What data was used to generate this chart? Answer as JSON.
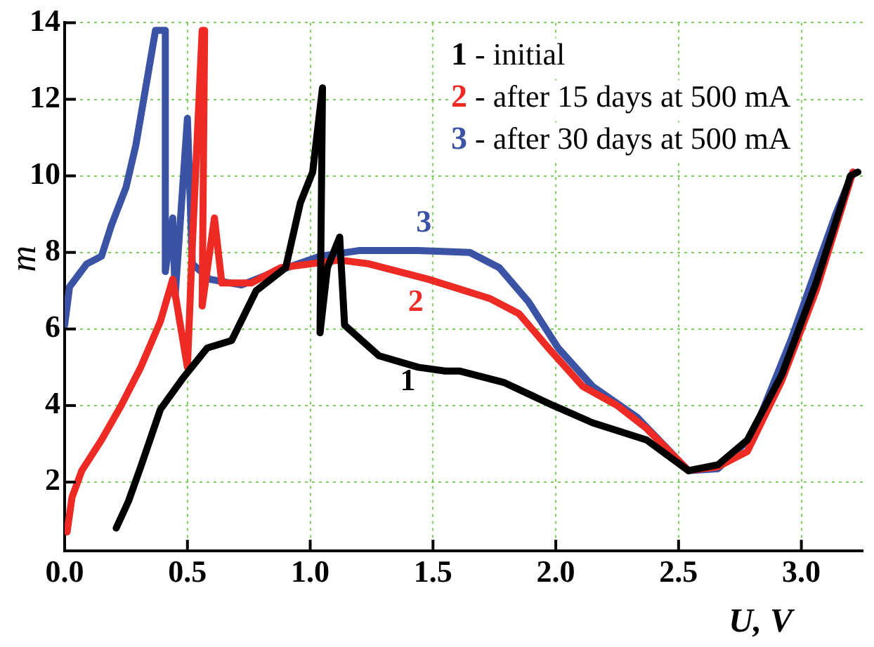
{
  "chart_data": {
    "type": "line",
    "xlabel": "U, V",
    "ylabel": "m",
    "xlim": [
      0,
      3.25
    ],
    "ylim": [
      0.2,
      14
    ],
    "xticks": [
      {
        "value": 0,
        "label": "0.0"
      },
      {
        "value": 0.5,
        "label": "0.5"
      },
      {
        "value": 1,
        "label": "1.0"
      },
      {
        "value": 1.5,
        "label": "1.5"
      },
      {
        "value": 2,
        "label": "2.0"
      },
      {
        "value": 2.5,
        "label": "2.5"
      },
      {
        "value": 3,
        "label": "3.0"
      }
    ],
    "yticks": [
      2,
      4,
      6,
      8,
      10,
      12,
      14
    ],
    "grid": true,
    "legend": "top right",
    "marker": "none",
    "line_style": "solid",
    "series": [
      {
        "name": "1 - initial",
        "color": "#000000",
        "x": [
          0.21,
          0.26,
          0.31,
          0.39,
          0.48,
          0.58,
          0.68,
          0.78,
          0.9,
          0.96,
          1.01,
          1.05,
          1.04,
          1.07,
          1.12,
          1.14,
          1.28,
          1.44,
          1.55,
          1.61,
          1.79,
          1.99,
          2.15,
          2.37,
          2.54,
          2.66,
          2.78,
          2.92,
          3.06,
          3.2,
          3.23
        ],
        "values": [
          0.8,
          1.5,
          2.4,
          3.9,
          4.7,
          5.5,
          5.7,
          7.0,
          7.6,
          9.3,
          10.1,
          12.3,
          5.9,
          7.6,
          8.4,
          6.1,
          5.3,
          5.0,
          4.9,
          4.9,
          4.6,
          4.0,
          3.55,
          3.1,
          2.3,
          2.45,
          3.1,
          4.8,
          7.2,
          10.0,
          10.1
        ]
      },
      {
        "name": "2 - after 15 days at 500 mA",
        "color": "#ee2a24",
        "x": [
          0.01,
          0.03,
          0.07,
          0.15,
          0.23,
          0.31,
          0.39,
          0.44,
          0.5,
          0.52,
          0.56,
          0.57,
          0.56,
          0.61,
          0.64,
          0.76,
          0.88,
          1.12,
          1.24,
          1.48,
          1.73,
          1.85,
          1.97,
          2.11,
          2.25,
          2.37,
          2.54,
          2.66,
          2.78,
          2.92,
          3.06,
          3.21
        ],
        "values": [
          0.7,
          1.6,
          2.3,
          3.1,
          4.0,
          5.0,
          6.2,
          7.3,
          5.0,
          8.2,
          13.8,
          13.8,
          6.6,
          8.9,
          7.2,
          7.2,
          7.6,
          7.8,
          7.7,
          7.3,
          6.8,
          6.4,
          5.5,
          4.5,
          4.0,
          3.4,
          2.3,
          2.4,
          2.8,
          4.65,
          7.0,
          10.1
        ]
      },
      {
        "name": "3 - after 30 days at 500 mA",
        "color": "#3a53a4",
        "x": [
          0.0,
          0.02,
          0.09,
          0.15,
          0.19,
          0.25,
          0.29,
          0.33,
          0.37,
          0.41,
          0.41,
          0.44,
          0.45,
          0.5,
          0.52,
          0.59,
          0.72,
          0.86,
          1.04,
          1.2,
          1.44,
          1.65,
          1.77,
          1.89,
          2.01,
          2.15,
          2.33,
          2.54,
          2.66,
          2.8,
          2.96,
          3.14,
          3.21
        ],
        "values": [
          6.1,
          7.1,
          7.7,
          7.9,
          8.7,
          9.7,
          10.8,
          12.3,
          13.8,
          13.8,
          7.5,
          8.9,
          6.85,
          11.5,
          7.7,
          7.3,
          7.15,
          7.5,
          7.9,
          8.05,
          8.05,
          8.0,
          7.6,
          6.7,
          5.5,
          4.5,
          3.7,
          2.3,
          2.35,
          3.2,
          5.75,
          9.0,
          10.1
        ]
      }
    ],
    "annotations": [
      "1",
      "2",
      "3"
    ]
  }
}
